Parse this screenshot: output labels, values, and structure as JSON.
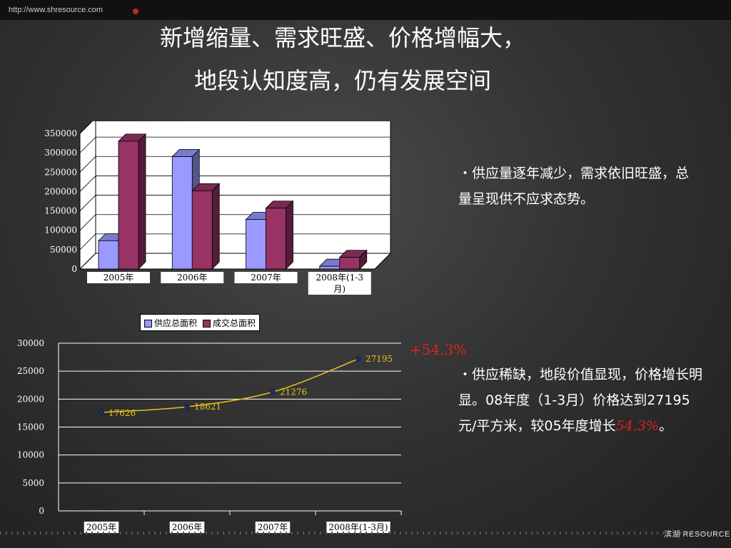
{
  "header": {
    "url": "http://www.shresource.com"
  },
  "title": {
    "line1": "新增缩量、需求旺盛、价格增幅大，",
    "line2": "地段认知度高，仍有发展空间"
  },
  "colors": {
    "supply": "#9999ff",
    "deal": "#993366",
    "line": "#e8c21a",
    "marker": "#1a2a8c",
    "highlight": "#e0211d"
  },
  "chart_data": [
    {
      "type": "bar",
      "categories": [
        "2005年",
        "2006年",
        "2007年",
        "2008年(1-3月)"
      ],
      "series": [
        {
          "name": "供应总面积",
          "values": [
            73000,
            290000,
            128000,
            7000
          ]
        },
        {
          "name": "成交总面积",
          "values": [
            330000,
            202000,
            157000,
            30000
          ]
        }
      ],
      "ylim": [
        0,
        350000
      ],
      "yticks": [
        "0",
        "50000",
        "100000",
        "150000",
        "200000",
        "250000",
        "300000",
        "350000"
      ],
      "legend": "bottom"
    },
    {
      "type": "line",
      "categories": [
        "2005年",
        "2006年",
        "2007年",
        "2008年(1-3月)"
      ],
      "values": [
        17626,
        18621,
        21276,
        27195
      ],
      "labels": [
        "17626",
        "18621",
        "21276",
        "27195"
      ],
      "ylim": [
        0,
        30000
      ],
      "yticks": [
        "0",
        "5000",
        "10000",
        "15000",
        "20000",
        "25000",
        "30000"
      ]
    }
  ],
  "legend": {
    "supply": "供应总面积",
    "deal": "成交总面积"
  },
  "bar_cat_lines": [
    [
      "2005年"
    ],
    [
      "2006年"
    ],
    [
      "2007年"
    ],
    [
      "2008年(1-3",
      "月)"
    ]
  ],
  "bullets": {
    "b1": "・供应量逐年减少，需求依旧旺盛，总量呈现供不应求态势。",
    "b2_text": "・供应稀缺，地段价值显现，价格增长明显。08年度（1-3月）价格达到27195元/平方米，较05年度增长",
    "b2_highlight": "54.3%",
    "b2_end": "。"
  },
  "growth_label": "+54.3%",
  "brand": "滨湖 RESOURCE"
}
